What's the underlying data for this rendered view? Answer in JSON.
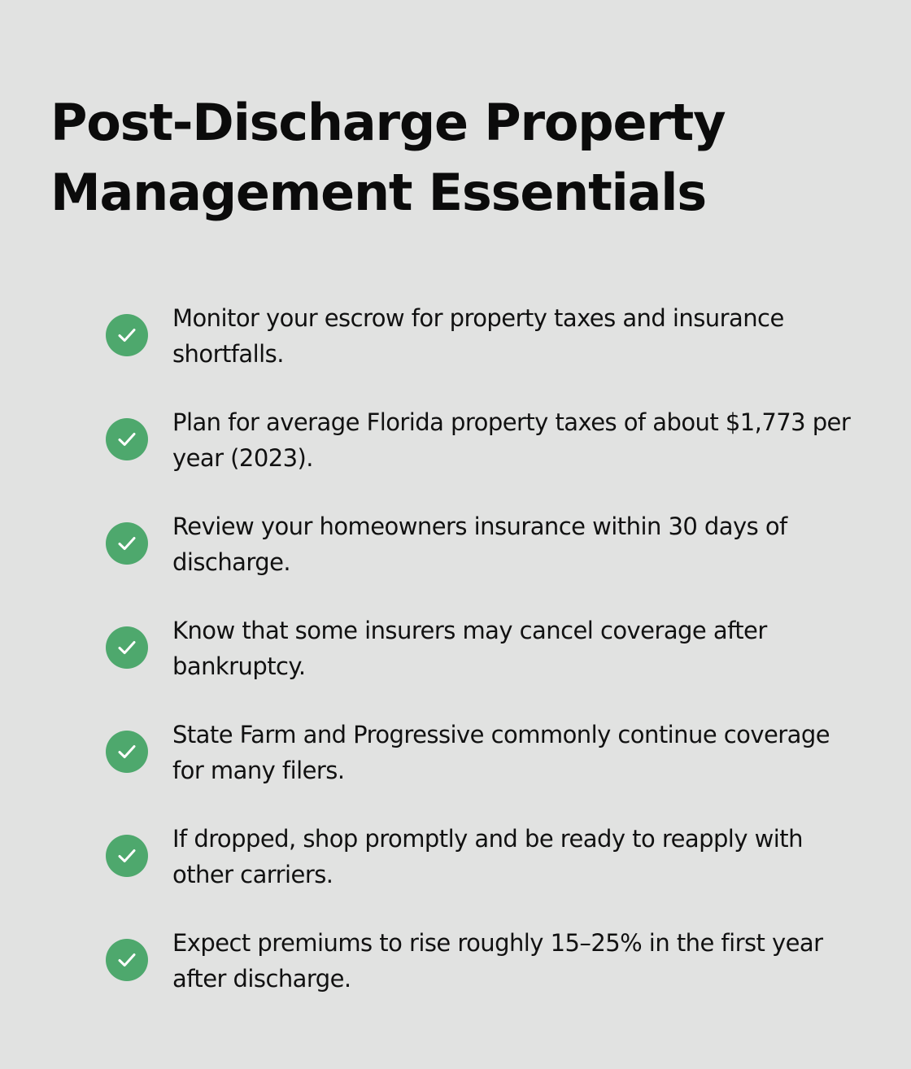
{
  "title": "Post-Discharge Property Management Essentials",
  "icon": "check-circle-icon",
  "accent_color": "#4ea86d",
  "items": [
    "Monitor your escrow for property taxes and insurance shortfalls.",
    "Plan for average Florida property taxes of about $1,773 per year (2023).",
    "Review your homeowners insurance within 30 days of discharge.",
    "Know that some insurers may cancel coverage after bankruptcy.",
    "State Farm and Progressive commonly continue coverage for many filers.",
    "If dropped, shop promptly and be ready to reapply with other carriers.",
    "Expect premiums to rise roughly 15–25% in the first year after discharge."
  ]
}
